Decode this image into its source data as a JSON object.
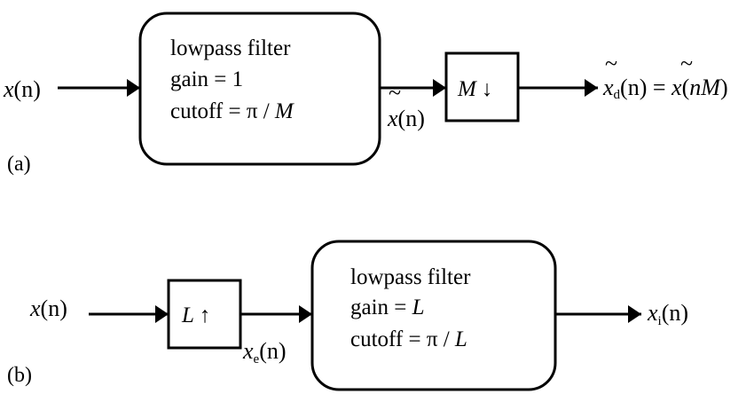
{
  "diagram_a": {
    "caption": "(a)",
    "input_label": {
      "var": "x",
      "arg": "(n)"
    },
    "filter": {
      "line1": "lowpass filter",
      "line2": "gain = 1",
      "line3_prefix": "cutoff = π / ",
      "line3_var": "M"
    },
    "mid_label": {
      "tilde": "~",
      "var": "x",
      "arg": "(n)"
    },
    "downsampler": {
      "var": "M",
      "arrow": "↓"
    },
    "output_label": {
      "tilde1": "~",
      "var1": "x",
      "sub1": "d",
      "arg1": "(n)",
      "eq": " = ",
      "tilde2": "~",
      "var2": "x",
      "paren_open": "(",
      "inner": "nM",
      "paren_close": ")"
    }
  },
  "diagram_b": {
    "caption": "(b)",
    "input_label": {
      "var": "x",
      "arg": "(n)"
    },
    "upsampler": {
      "var": "L",
      "arrow": "↑"
    },
    "mid_label": {
      "var": "x",
      "sub": "e",
      "arg": "(n)"
    },
    "filter": {
      "line1": "lowpass filter",
      "line2_prefix": "gain = ",
      "line2_var": "L",
      "line3_prefix": "cutoff = π / ",
      "line3_var": "L"
    },
    "output_label": {
      "var": "x",
      "sub": "i",
      "arg": "(n)"
    }
  }
}
